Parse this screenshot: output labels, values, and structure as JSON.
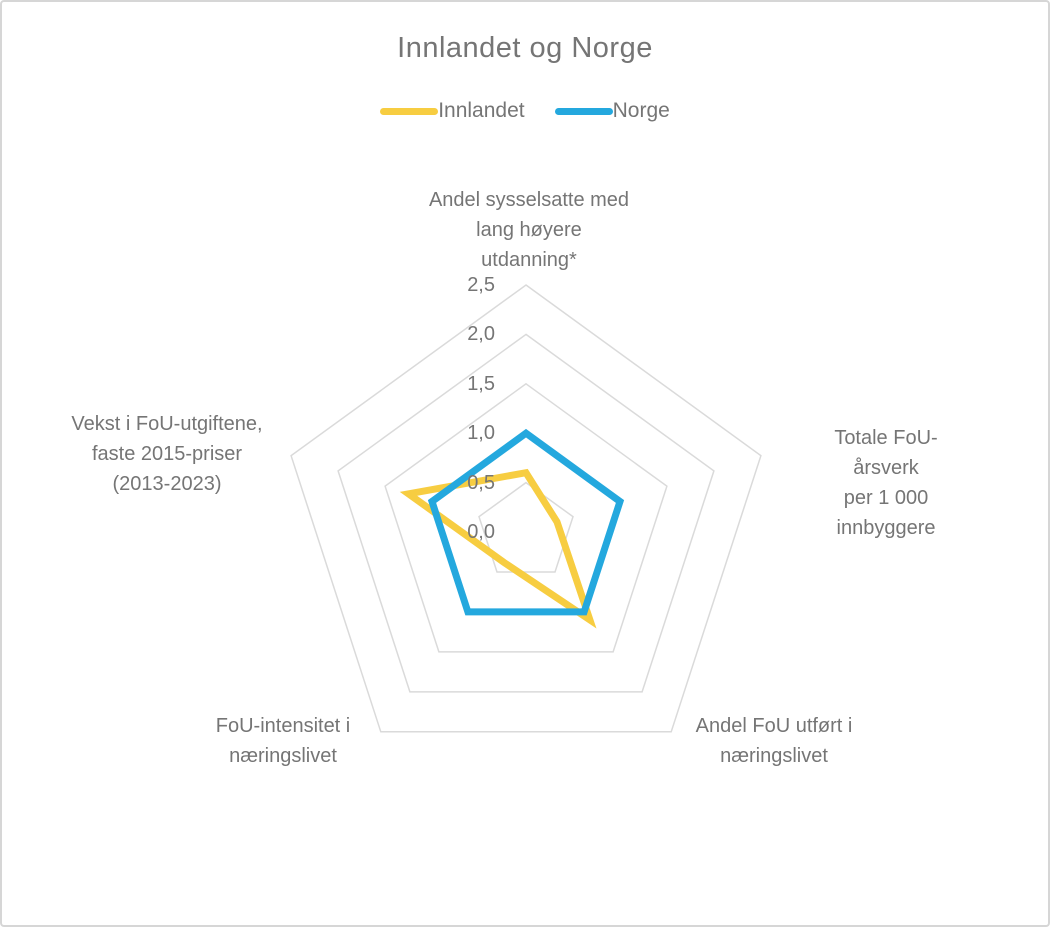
{
  "frame": {
    "background": "#ffffff",
    "border_color": "#d6d6d6"
  },
  "chart_data": {
    "type": "radar",
    "title": "Innlandet og Norge",
    "categories": [
      "Andel sysselsatte med\nlang høyere\nutdanning*",
      "Totale FoU-årsverk\nper 1 000 innbyggere",
      "Andel FoU utført i\nnæringslivet",
      "FoU-intensitet i\nnæringslivet",
      "Vekst i FoU-utgiftene,\nfaste 2015-priser\n(2013-2023)"
    ],
    "series": [
      {
        "name": "Innlandet",
        "color": "#F7CD41",
        "values": [
          0.6,
          0.33,
          1.1,
          0.38,
          1.25
        ]
      },
      {
        "name": "Norge",
        "color": "#24A8DE",
        "values": [
          1.0,
          1.0,
          1.0,
          1.0,
          1.0
        ]
      }
    ],
    "r_axis": {
      "min": 0.0,
      "max": 2.5,
      "tick_step": 0.5,
      "tick_labels": [
        "0,0",
        "0,5",
        "1,0",
        "1,5",
        "2,0",
        "2,5"
      ]
    },
    "grid": true,
    "legend_position": "top",
    "styles": {
      "text_color": "#757575",
      "gridline_color": "#DADADA",
      "series_stroke_width": 7,
      "gridline_stroke_width": 1.5
    }
  }
}
